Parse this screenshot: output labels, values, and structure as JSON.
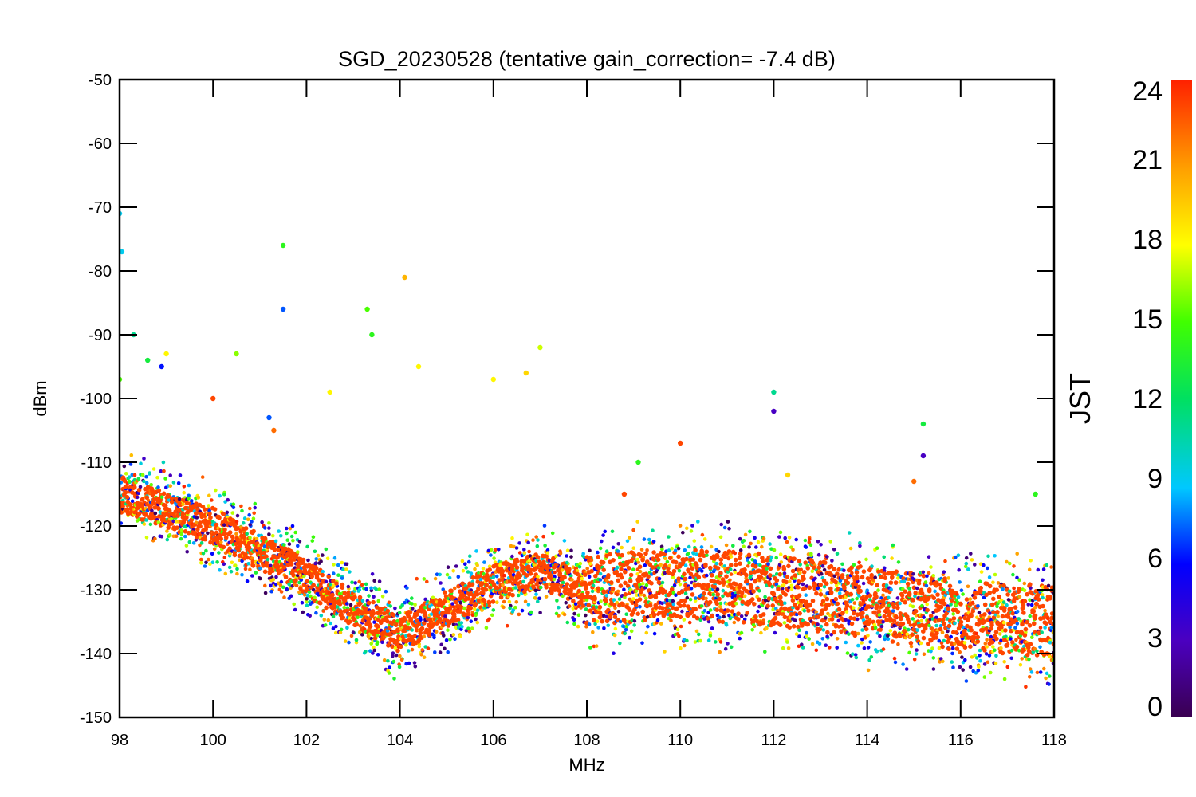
{
  "chart_data": {
    "type": "scatter",
    "title": "SGD_20230528 (tentative gain_correction= -7.4 dB)",
    "xlabel": "MHz",
    "ylabel": "dBm",
    "xlim": [
      98,
      118
    ],
    "ylim": [
      -150,
      -50
    ],
    "xticks": [
      "98",
      "100",
      "102",
      "104",
      "106",
      "108",
      "110",
      "112",
      "114",
      "116",
      "118"
    ],
    "yticks": [
      "-50",
      "-60",
      "-70",
      "-80",
      "-90",
      "-100",
      "-110",
      "-120",
      "-130",
      "-140",
      "-150"
    ],
    "colorbar": {
      "title": "JST",
      "range": [
        0,
        24
      ],
      "ticks": [
        "0",
        "3",
        "6",
        "9",
        "12",
        "15",
        "18",
        "21",
        "24"
      ],
      "colormap": "rainbow"
    },
    "grid": false,
    "noise_floor": [
      {
        "x": 98,
        "y": -115
      },
      {
        "x": 100,
        "y": -120
      },
      {
        "x": 102,
        "y": -128
      },
      {
        "x": 103,
        "y": -133
      },
      {
        "x": 104,
        "y": -137
      },
      {
        "x": 105,
        "y": -133
      },
      {
        "x": 106,
        "y": -129
      },
      {
        "x": 107,
        "y": -127
      },
      {
        "x": 108,
        "y": -130
      },
      {
        "x": 110,
        "y": -129
      },
      {
        "x": 112,
        "y": -130
      },
      {
        "x": 114,
        "y": -132
      },
      {
        "x": 116,
        "y": -134
      },
      {
        "x": 118,
        "y": -135
      }
    ],
    "peaks": [
      {
        "x": 98.0,
        "y": -71,
        "jst": 9
      },
      {
        "x": 98.05,
        "y": -77,
        "jst": 9
      },
      {
        "x": 98.0,
        "y": -97,
        "jst": 15
      },
      {
        "x": 98.3,
        "y": -90,
        "jst": 11
      },
      {
        "x": 98.6,
        "y": -94,
        "jst": 13
      },
      {
        "x": 98.9,
        "y": -95,
        "jst": 6
      },
      {
        "x": 99.0,
        "y": -93,
        "jst": 18
      },
      {
        "x": 100.0,
        "y": -100,
        "jst": 23
      },
      {
        "x": 100.5,
        "y": -93,
        "jst": 16
      },
      {
        "x": 101.2,
        "y": -103,
        "jst": 7
      },
      {
        "x": 101.3,
        "y": -105,
        "jst": 22
      },
      {
        "x": 101.5,
        "y": -76,
        "jst": 14
      },
      {
        "x": 101.5,
        "y": -86,
        "jst": 7
      },
      {
        "x": 102.5,
        "y": -99,
        "jst": 18
      },
      {
        "x": 103.3,
        "y": -86,
        "jst": 15
      },
      {
        "x": 103.4,
        "y": -90,
        "jst": 14
      },
      {
        "x": 104.1,
        "y": -81,
        "jst": 20
      },
      {
        "x": 104.4,
        "y": -95,
        "jst": 18
      },
      {
        "x": 106.0,
        "y": -97,
        "jst": 18
      },
      {
        "x": 106.7,
        "y": -96,
        "jst": 19
      },
      {
        "x": 107.0,
        "y": -92,
        "jst": 17
      },
      {
        "x": 108.8,
        "y": -115,
        "jst": 23
      },
      {
        "x": 109.1,
        "y": -110,
        "jst": 14
      },
      {
        "x": 110.0,
        "y": -107,
        "jst": 23
      },
      {
        "x": 112.0,
        "y": -99,
        "jst": 11
      },
      {
        "x": 112.0,
        "y": -102,
        "jst": 3
      },
      {
        "x": 112.3,
        "y": -112,
        "jst": 19
      },
      {
        "x": 115.0,
        "y": -113,
        "jst": 22
      },
      {
        "x": 115.2,
        "y": -104,
        "jst": 13
      },
      {
        "x": 115.2,
        "y": -109,
        "jst": 3
      },
      {
        "x": 117.6,
        "y": -115,
        "jst": 14
      }
    ]
  }
}
